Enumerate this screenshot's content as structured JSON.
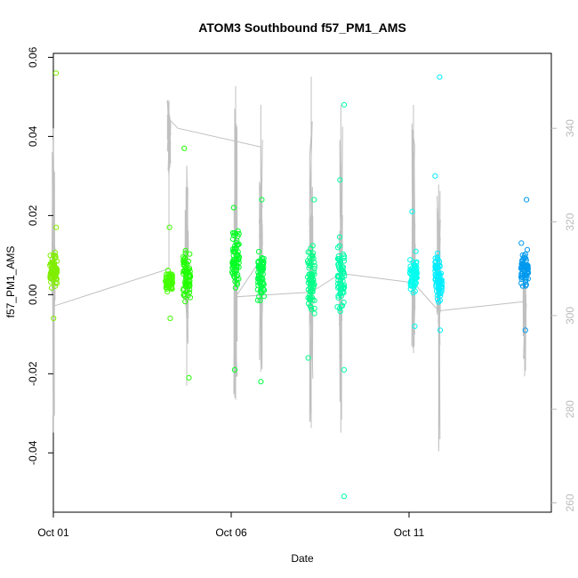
{
  "chart_data": {
    "type": "scatter",
    "title": "ATOM3 Southbound f57_PM1_AMS",
    "xlabel": "Date",
    "ylabel": "f57_PM1_AMS",
    "x_ticks": [
      {
        "date": "2016-10-01",
        "label": "Oct 01"
      },
      {
        "date": "2016-10-06",
        "label": "Oct 06"
      },
      {
        "date": "2016-10-11",
        "label": "Oct 11"
      }
    ],
    "xlim": [
      "2016-10-01T00:00",
      "2016-10-15T00:00"
    ],
    "y_ticks": [
      -0.04,
      -0.02,
      0.0,
      0.02,
      0.04,
      0.06
    ],
    "y_tick_labels": [
      "-0.04",
      "-0.02",
      "0.00",
      "0.02",
      "0.04",
      "0.06"
    ],
    "ylim": [
      -0.055,
      0.061
    ],
    "secondary_y_ticks": [
      260,
      280,
      300,
      320,
      340
    ],
    "secondary_y_tick_labels": [
      "260",
      "280",
      "300",
      "320",
      "340"
    ],
    "secondary_ylim": [
      258,
      356
    ],
    "grid": false,
    "colors": {
      "secondary_axis": "#bbbbbb",
      "secondary_line": "#c0c0c0",
      "axis": "#000000"
    },
    "series": [
      {
        "date": "2016-10-01T00:06",
        "color": "#80ee00",
        "min": -0.006,
        "max": 0.017,
        "q1": 0.001,
        "q3": 0.01,
        "outliers": [
          0.056
        ]
      },
      {
        "date": "2016-10-04T06:00",
        "color": "#44ff00",
        "min": -0.006,
        "max": 0.017,
        "q1": 0.0,
        "q3": 0.006,
        "outliers": []
      },
      {
        "date": "2016-10-04T18:00",
        "color": "#22ff00",
        "min": -0.021,
        "max": 0.037,
        "q1": -0.002,
        "q3": 0.012,
        "outliers": []
      },
      {
        "date": "2016-10-06T03:00",
        "color": "#00ff22",
        "min": -0.019,
        "max": 0.022,
        "q1": 0.002,
        "q3": 0.016,
        "outliers": []
      },
      {
        "date": "2016-10-06T20:00",
        "color": "#00ff44",
        "min": -0.022,
        "max": 0.024,
        "q1": -0.002,
        "q3": 0.012,
        "outliers": []
      },
      {
        "date": "2016-10-08T06:00",
        "color": "#00ff88",
        "min": -0.016,
        "max": 0.024,
        "q1": -0.004,
        "q3": 0.012,
        "outliers": []
      },
      {
        "date": "2016-10-09T02:00",
        "color": "#00ffaa",
        "min": -0.019,
        "max": 0.029,
        "q1": -0.004,
        "q3": 0.014,
        "outliers": [
          -0.051,
          0.048
        ]
      },
      {
        "date": "2016-10-11T03:00",
        "color": "#00ffee",
        "min": -0.008,
        "max": 0.021,
        "q1": 0.0,
        "q3": 0.01,
        "outliers": []
      },
      {
        "date": "2016-10-11T20:00",
        "color": "#00eeff",
        "min": -0.009,
        "max": 0.03,
        "q1": -0.002,
        "q3": 0.01,
        "outliers": [
          0.055
        ]
      },
      {
        "date": "2016-10-14T06:00",
        "color": "#0099ee",
        "min": -0.009,
        "max": 0.024,
        "q1": 0.002,
        "q3": 0.012,
        "outliers": []
      }
    ],
    "secondary_series": [
      {
        "date": "2016-10-01T00:06",
        "min": 275,
        "max": 340,
        "q1": 303,
        "q3": 318
      },
      {
        "date": "2016-10-04T06:00",
        "min": 330,
        "max": 346,
        "q1": 336,
        "q3": 342
      },
      {
        "date": "2016-10-04T18:00",
        "min": 285,
        "max": 332,
        "q1": 300,
        "q3": 318
      },
      {
        "date": "2016-10-06T03:00",
        "min": 282,
        "max": 349,
        "q1": 300,
        "q3": 325
      },
      {
        "date": "2016-10-06T20:00",
        "min": 288,
        "max": 345,
        "q1": 300,
        "q3": 325
      },
      {
        "date": "2016-10-08T06:00",
        "min": 276,
        "max": 351,
        "q1": 298,
        "q3": 322
      },
      {
        "date": "2016-10-09T02:00",
        "min": 275,
        "max": 345,
        "q1": 296,
        "q3": 322
      },
      {
        "date": "2016-10-11T03:00",
        "min": 292,
        "max": 345,
        "q1": 300,
        "q3": 320
      },
      {
        "date": "2016-10-11T20:00",
        "min": 271,
        "max": 328,
        "q1": 300,
        "q3": 318
      },
      {
        "date": "2016-10-14T06:00",
        "min": 287,
        "max": 310,
        "q1": 297,
        "q3": 306
      }
    ],
    "secondary_connector": [
      {
        "date": "2016-10-01T00:06",
        "y": 302
      },
      {
        "date": "2016-10-04T06:00",
        "y": 310
      },
      {
        "date": "2016-10-04T06:00",
        "y": 342
      },
      {
        "date": "2016-10-04T12:00",
        "y": 340
      },
      {
        "date": "2016-10-06T20:00",
        "y": 336
      },
      {
        "date": "2016-10-06T20:00",
        "y": 312
      },
      {
        "date": "2016-10-06T03:00",
        "y": 304
      },
      {
        "date": "2016-10-08T06:00",
        "y": 305
      },
      {
        "date": "2016-10-09T02:00",
        "y": 309
      },
      {
        "date": "2016-10-11T03:00",
        "y": 307
      },
      {
        "date": "2016-10-11T20:00",
        "y": 301
      },
      {
        "date": "2016-10-14T06:00",
        "y": 303
      }
    ]
  }
}
